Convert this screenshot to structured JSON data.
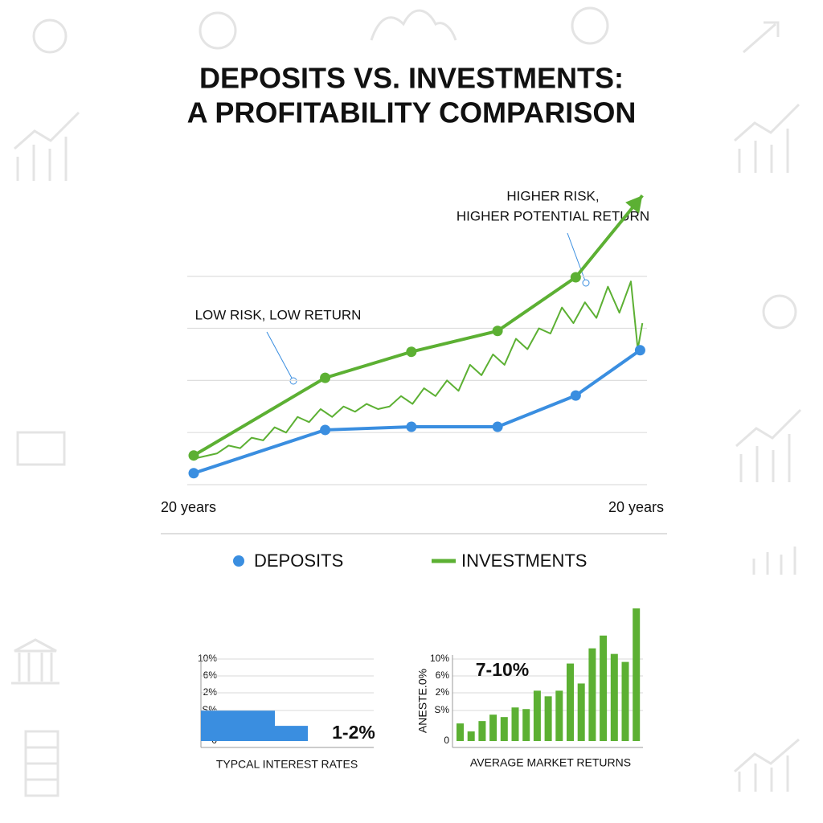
{
  "title": [
    "DEPOSITS VS. INVESTMENTS:",
    "A PROFITABILITY COMPARISON"
  ],
  "chart_data": [
    {
      "type": "line",
      "x_labels": [
        "20 years",
        "20 years"
      ],
      "xlim": [
        0,
        20
      ],
      "ylim": [
        0,
        5.6
      ],
      "gridlines": [
        0,
        1,
        2,
        3,
        4
      ],
      "annotations": [
        {
          "text": [
            "HIGHER RISK,",
            "HIGHER POTENTIAL RETURN"
          ]
        },
        {
          "text": [
            "LOW RISK, LOW RETURN"
          ]
        }
      ],
      "series": [
        {
          "name": "DEPOSITS",
          "color": "#3a8ee0",
          "x": [
            0.28,
            6.0,
            9.75,
            13.5,
            16.9,
            19.7
          ],
          "values": [
            0.22,
            1.05,
            1.11,
            1.11,
            1.71,
            2.58
          ]
        },
        {
          "name": "INVESTMENTS",
          "color": "#5cb033",
          "x": [
            0.28,
            6.0,
            9.75,
            13.5,
            16.9,
            19.8
          ],
          "values": [
            0.56,
            2.05,
            2.55,
            2.95,
            3.98,
            5.55
          ]
        },
        {
          "color": "#5cb033",
          "x": [
            0.3,
            0.8,
            1.3,
            1.8,
            2.3,
            2.8,
            3.3,
            3.8,
            4.3,
            4.8,
            5.3,
            5.8,
            6.3,
            6.8,
            7.3,
            7.8,
            8.3,
            8.8,
            9.3,
            9.8,
            10.3,
            10.8,
            11.3,
            11.8,
            12.3,
            12.8,
            13.3,
            13.8,
            14.3,
            14.8,
            15.3,
            15.8,
            16.3,
            16.8,
            17.3,
            17.8,
            18.3,
            18.8,
            19.3,
            19.6,
            19.8
          ],
          "values": [
            0.5,
            0.55,
            0.6,
            0.75,
            0.7,
            0.9,
            0.85,
            1.1,
            1.0,
            1.3,
            1.2,
            1.45,
            1.3,
            1.5,
            1.4,
            1.55,
            1.45,
            1.5,
            1.7,
            1.55,
            1.85,
            1.7,
            2.0,
            1.8,
            2.3,
            2.1,
            2.5,
            2.3,
            2.8,
            2.6,
            3.0,
            2.9,
            3.4,
            3.1,
            3.5,
            3.2,
            3.8,
            3.3,
            3.9,
            2.6,
            3.1
          ]
        }
      ]
    },
    {
      "type": "bar",
      "color": "#3a8ee0",
      "ylim": [
        0,
        17
      ],
      "tick_labels": [
        "10%",
        "6%",
        "2%",
        "S%",
        "0"
      ],
      "values": [
        3.8,
        1.9
      ],
      "annotation": "1-2%",
      "x_label": "TYPCAL INTEREST RATES"
    },
    {
      "type": "bar",
      "color": "#5cb033",
      "ylim": [
        0,
        17
      ],
      "tick_labels": [
        "10%",
        "6%",
        "2%",
        "S%",
        "0"
      ],
      "ylabel": "ANESTE.0%",
      "values": [
        2.2,
        1.2,
        2.5,
        3.3,
        3.0,
        4.2,
        4.0,
        6.3,
        5.6,
        6.3,
        9.7,
        7.2,
        11.6,
        13.2,
        10.9,
        9.9,
        16.6
      ],
      "annotation": "7-10%",
      "x_label": "AVERAGE MARKET RETURNS"
    }
  ]
}
